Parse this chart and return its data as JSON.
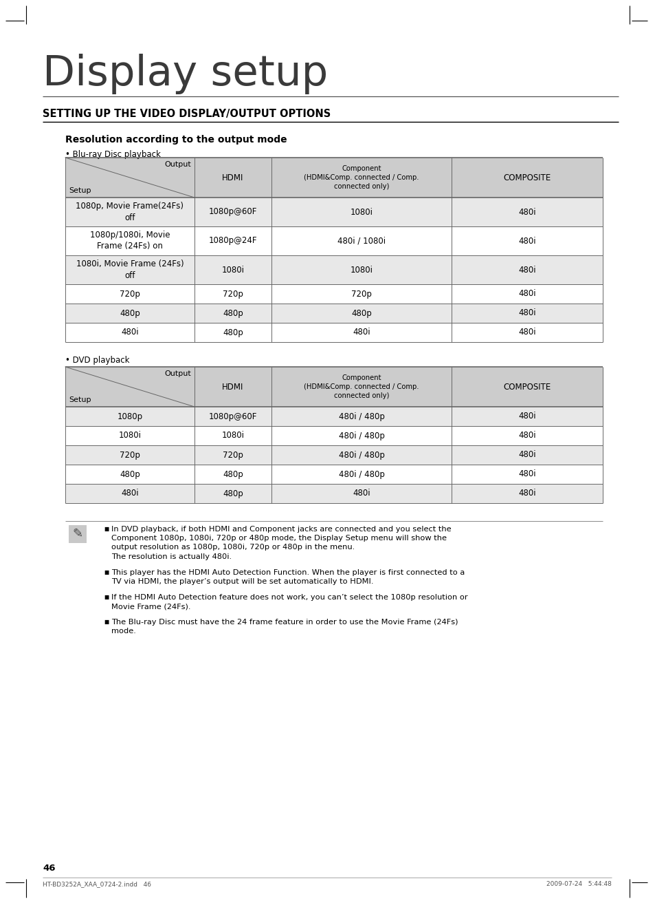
{
  "title": "Display setup",
  "section_title": "SETTING UP THE VIDEO DISPLAY/OUTPUT OPTIONS",
  "subsection_title": "Resolution according to the output mode",
  "bg_color": "#ffffff",
  "table_header_bg": "#cccccc",
  "table_row_bg_alt": "#e8e8e8",
  "table_row_bg_white": "#ffffff",
  "table_border_color": "#666666",
  "bluray_label": "• Blu-ray Disc playback",
  "dvd_label": "• DVD playback",
  "bluray_rows": [
    [
      "1080p, Movie Frame(24Fs)\noff",
      "1080p@60F",
      "1080i",
      "480i"
    ],
    [
      "1080p/1080i, Movie\nFrame (24Fs) on",
      "1080p@24F",
      "480i / 1080i",
      "480i"
    ],
    [
      "1080i, Movie Frame (24Fs)\noff",
      "1080i",
      "1080i",
      "480i"
    ],
    [
      "720p",
      "720p",
      "720p",
      "480i"
    ],
    [
      "480p",
      "480p",
      "480p",
      "480i"
    ],
    [
      "480i",
      "480p",
      "480i",
      "480i"
    ]
  ],
  "dvd_rows": [
    [
      "1080p",
      "1080p@60F",
      "480i / 480p",
      "480i"
    ],
    [
      "1080i",
      "1080i",
      "480i / 480p",
      "480i"
    ],
    [
      "720p",
      "720p",
      "480i / 480p",
      "480i"
    ],
    [
      "480p",
      "480p",
      "480i / 480p",
      "480i"
    ],
    [
      "480i",
      "480p",
      "480i",
      "480i"
    ]
  ],
  "notes": [
    "In DVD playback, if both HDMI and Component jacks are connected and you select the\nComponent 1080p, 1080i, 720p or 480p mode, the Display Setup menu will show the\noutput resolution as 1080p, 1080i, 720p or 480p in the menu.\nThe resolution is actually 480i.",
    "This player has the HDMI Auto Detection Function. When the player is first connected to a\nTV via HDMI, the player’s output will be set automatically to HDMI.",
    "If the HDMI Auto Detection feature does not work, you can’t select the 1080p resolution or\nMovie Frame (24Fs).",
    "The Blu-ray Disc must have the 24 frame feature in order to use the Movie Frame (24Fs)\nmode."
  ],
  "page_number": "46",
  "footer_left": "HT-BD3252A_XAA_0724-2.indd   46",
  "footer_right": "2009-07-24   5:44:48"
}
